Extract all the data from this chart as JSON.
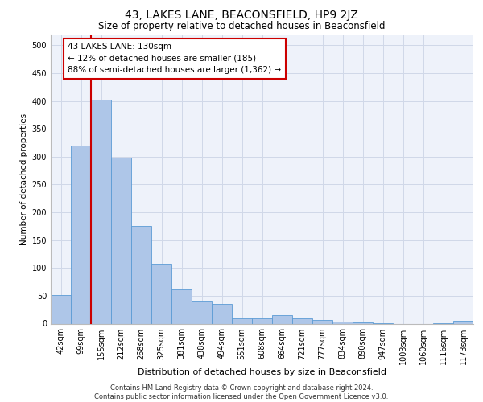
{
  "title": "43, LAKES LANE, BEACONSFIELD, HP9 2JZ",
  "subtitle": "Size of property relative to detached houses in Beaconsfield",
  "xlabel": "Distribution of detached houses by size in Beaconsfield",
  "ylabel": "Number of detached properties",
  "categories": [
    "42sqm",
    "99sqm",
    "155sqm",
    "212sqm",
    "268sqm",
    "325sqm",
    "381sqm",
    "438sqm",
    "494sqm",
    "551sqm",
    "608sqm",
    "664sqm",
    "721sqm",
    "777sqm",
    "834sqm",
    "890sqm",
    "947sqm",
    "1003sqm",
    "1060sqm",
    "1116sqm",
    "1173sqm"
  ],
  "values": [
    52,
    320,
    403,
    298,
    175,
    107,
    62,
    40,
    36,
    10,
    10,
    15,
    9,
    7,
    3,
    2,
    1,
    0,
    0,
    1,
    5
  ],
  "bar_color": "#aec6e8",
  "bar_edge_color": "#5b9bd5",
  "vline_x": 1.5,
  "vline_color": "#cc0000",
  "annotation_text": "43 LAKES LANE: 130sqm\n← 12% of detached houses are smaller (185)\n88% of semi-detached houses are larger (1,362) →",
  "annotation_box_color": "#ffffff",
  "annotation_box_edge_color": "#cc0000",
  "ylim": [
    0,
    520
  ],
  "yticks": [
    0,
    50,
    100,
    150,
    200,
    250,
    300,
    350,
    400,
    450,
    500
  ],
  "grid_color": "#d0d8e8",
  "background_color": "#eef2fa",
  "footer": "Contains HM Land Registry data © Crown copyright and database right 2024.\nContains public sector information licensed under the Open Government Licence v3.0.",
  "title_fontsize": 10,
  "subtitle_fontsize": 8.5,
  "xlabel_fontsize": 8,
  "ylabel_fontsize": 7.5,
  "tick_fontsize": 7,
  "annotation_fontsize": 7.5,
  "footer_fontsize": 6
}
